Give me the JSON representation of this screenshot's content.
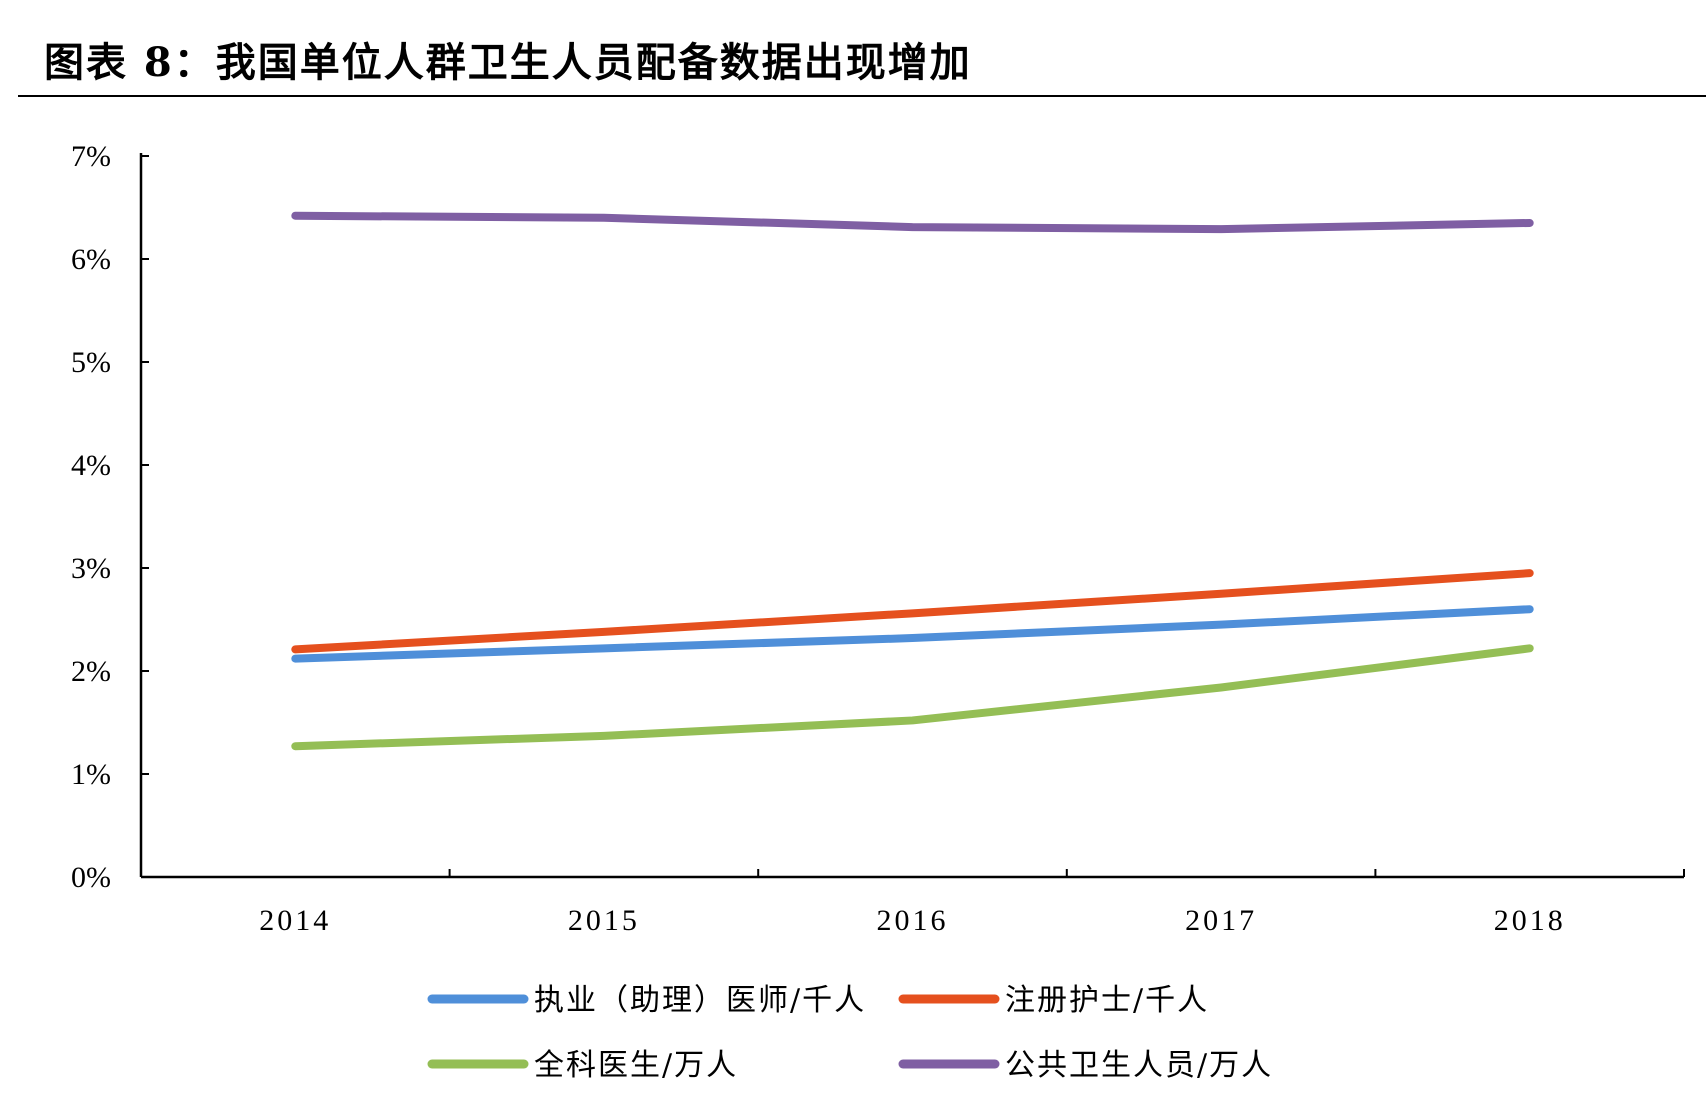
{
  "title": "图表 8：我国单位人群卫生人员配备数据出现增加",
  "chart_data": {
    "type": "line",
    "title": "图表 8：我国单位人群卫生人员配备数据出现增加",
    "xlabel": "",
    "ylabel": "",
    "categories": [
      "2014",
      "2015",
      "2016",
      "2017",
      "2018"
    ],
    "yticks": [
      "0%",
      "1%",
      "2%",
      "3%",
      "4%",
      "5%",
      "6%",
      "7%"
    ],
    "ylim": [
      0,
      7
    ],
    "grid": false,
    "legend_position": "bottom",
    "series": [
      {
        "name": "执业（助理）医师/千人",
        "color": "#4F8FD9",
        "values": [
          2.12,
          2.22,
          2.32,
          2.45,
          2.6
        ]
      },
      {
        "name": "注册护士/千人",
        "color": "#E5501E",
        "values": [
          2.21,
          2.38,
          2.56,
          2.75,
          2.95
        ]
      },
      {
        "name": "全科医生/万人",
        "color": "#94BE55",
        "values": [
          1.27,
          1.37,
          1.52,
          1.84,
          2.22
        ]
      },
      {
        "name": "公共卫生人员/万人",
        "color": "#7F5FA3",
        "values": [
          6.42,
          6.4,
          6.31,
          6.29,
          6.35
        ]
      }
    ]
  }
}
